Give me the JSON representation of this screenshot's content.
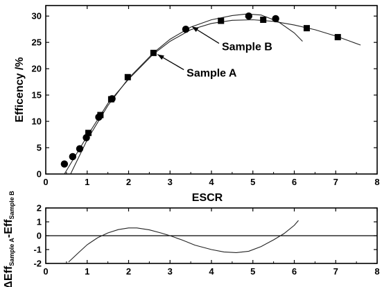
{
  "chart_data": [
    {
      "type": "scatter",
      "xlabel": "ESCR",
      "ylabel": "Efficency /%",
      "xlim": [
        0,
        8
      ],
      "ylim": [
        0,
        32
      ],
      "xticks": [
        "0",
        "1",
        "2",
        "3",
        "4",
        "5",
        "6",
        "7",
        "8"
      ],
      "yticks": [
        "0",
        "5",
        "10",
        "15",
        "20",
        "25",
        "30"
      ],
      "grid": false,
      "series": [
        {
          "marker": "circle",
          "points": [
            [
              0.45,
              1.9
            ],
            [
              0.65,
              3.3
            ],
            [
              0.82,
              4.8
            ],
            [
              0.98,
              6.9
            ],
            [
              1.28,
              10.8
            ],
            [
              1.6,
              14.3
            ],
            [
              3.38,
              27.5
            ],
            [
              4.9,
              30.0
            ],
            [
              5.55,
              29.5
            ]
          ]
        },
        {
          "marker": "square",
          "points": [
            [
              1.03,
              7.8
            ],
            [
              1.32,
              11.2
            ],
            [
              1.58,
              14.2
            ],
            [
              1.98,
              18.4
            ],
            [
              2.6,
              23.0
            ],
            [
              4.23,
              29.1
            ],
            [
              5.25,
              29.3
            ],
            [
              6.3,
              27.7
            ],
            [
              7.05,
              26.0
            ]
          ]
        }
      ],
      "fit_curves": [
        {
          "points": [
            [
              0.6,
              0
            ],
            [
              1.0,
              6.5
            ],
            [
              1.5,
              13.0
            ],
            [
              2.0,
              18.2
            ],
            [
              2.6,
              23.0
            ],
            [
              3.0,
              25.6
            ],
            [
              3.5,
              27.9
            ],
            [
              4.0,
              29.3
            ],
            [
              4.5,
              30.1
            ],
            [
              4.85,
              30.4
            ],
            [
              5.2,
              30.2
            ],
            [
              5.6,
              29.0
            ],
            [
              6.0,
              26.8
            ],
            [
              6.2,
              25.2
            ]
          ]
        },
        {
          "points": [
            [
              0.45,
              0
            ],
            [
              1.0,
              7.2
            ],
            [
              1.5,
              13.4
            ],
            [
              2.0,
              18.0
            ],
            [
              2.6,
              22.8
            ],
            [
              3.0,
              25.2
            ],
            [
              3.5,
              27.4
            ],
            [
              4.0,
              28.6
            ],
            [
              4.5,
              29.2
            ],
            [
              5.0,
              29.3
            ],
            [
              5.5,
              29.0
            ],
            [
              6.0,
              28.3
            ],
            [
              6.5,
              27.4
            ],
            [
              7.0,
              26.2
            ],
            [
              7.6,
              24.5
            ]
          ]
        }
      ],
      "annotations": [
        {
          "text": "Sample B",
          "x": 4.25,
          "y": 23.5,
          "arrow_to": [
            3.53,
            28.0
          ]
        },
        {
          "text": "Sample A",
          "x": 3.4,
          "y": 18.5,
          "arrow_to": [
            2.7,
            22.7
          ]
        }
      ]
    },
    {
      "type": "line",
      "xlabel": "ESCR",
      "ylabel_parts": {
        "delta": "ΔEff",
        "sub1": "Sample A",
        "minus": "-Eff",
        "sub2": "Sample B"
      },
      "xlim": [
        0,
        8
      ],
      "ylim": [
        -2,
        2
      ],
      "xticks": [
        "0",
        "1",
        "2",
        "3",
        "4",
        "5",
        "6",
        "7",
        "8"
      ],
      "yticks": [
        "-2",
        "-1",
        "0",
        "1",
        "2"
      ],
      "reference_line": 0,
      "curve": [
        [
          0.55,
          -1.9
        ],
        [
          0.8,
          -1.2
        ],
        [
          1.0,
          -0.65
        ],
        [
          1.25,
          -0.15
        ],
        [
          1.5,
          0.2
        ],
        [
          1.75,
          0.44
        ],
        [
          2.0,
          0.56
        ],
        [
          2.2,
          0.56
        ],
        [
          2.5,
          0.42
        ],
        [
          2.8,
          0.18
        ],
        [
          3.0,
          0.0
        ],
        [
          3.3,
          -0.32
        ],
        [
          3.6,
          -0.68
        ],
        [
          4.0,
          -1.0
        ],
        [
          4.3,
          -1.17
        ],
        [
          4.6,
          -1.22
        ],
        [
          4.9,
          -1.12
        ],
        [
          5.2,
          -0.78
        ],
        [
          5.5,
          -0.3
        ],
        [
          5.75,
          0.15
        ],
        [
          6.0,
          0.75
        ],
        [
          6.1,
          1.1
        ]
      ]
    }
  ]
}
